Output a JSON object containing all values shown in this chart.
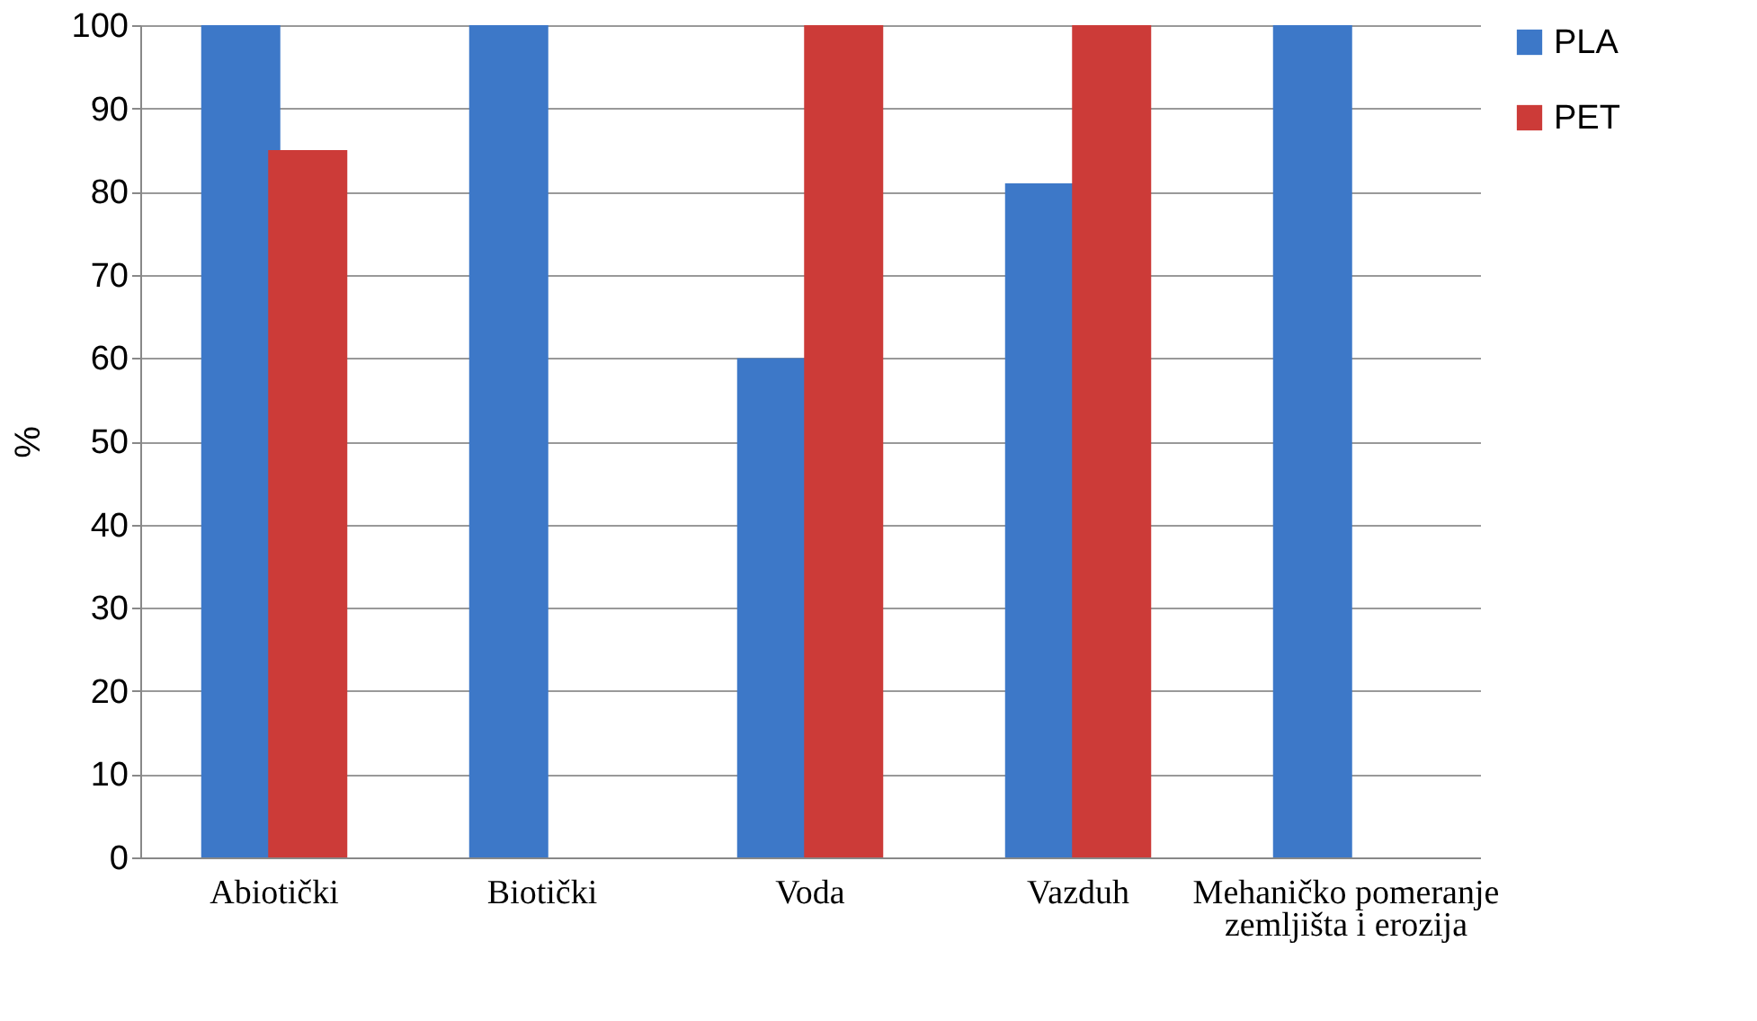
{
  "chart_data": {
    "type": "bar",
    "ylabel": "%",
    "categories": [
      "Abiotički",
      "Biotički",
      "Voda",
      "Vazduh",
      "Mehaničko pomeranje zemljišta i erozija"
    ],
    "series": [
      {
        "name": "PLA",
        "color": "#3d78c8",
        "values": [
          100,
          100,
          60,
          81,
          100
        ]
      },
      {
        "name": "PET",
        "color": "#cc3b38",
        "values": [
          85,
          null,
          100,
          100,
          null
        ]
      }
    ],
    "ylim": [
      0,
      100
    ],
    "yticks": [
      0,
      10,
      20,
      30,
      40,
      50,
      60,
      70,
      80,
      90,
      100
    ],
    "grid": "y",
    "legend": "right"
  }
}
